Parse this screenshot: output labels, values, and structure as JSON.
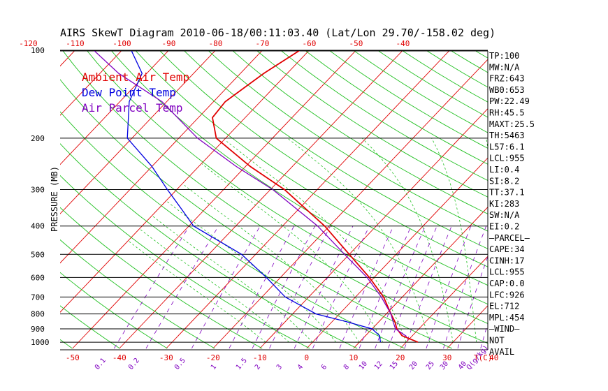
{
  "chart_data": {
    "type": "line",
    "title": "AIRS SkewT Diagram 2010-06-18/00:11:03.40 (Lat/Lon 29.70/-158.02 deg)",
    "ylabel": "PRESSURE (MB)",
    "y_scale": "log",
    "ylim": [
      1050,
      100
    ],
    "y_ticks": [
      "100",
      "200",
      "300",
      "400",
      "500",
      "600",
      "700",
      "800",
      "900",
      "1000"
    ],
    "top_temp_ticks": [
      "-120",
      "-110",
      "-100",
      "-90",
      "-80",
      "-70",
      "-60",
      "-50",
      "-40"
    ],
    "bottom_temp_ticks": [
      "-50",
      "-40",
      "-30",
      "-20",
      "-10",
      "0",
      "10",
      "20",
      "30",
      "40"
    ],
    "bottom_axis_unit": "T(C)",
    "mixing_ratio_labels": [
      "0.1",
      "0.2",
      "0.5",
      "1",
      "1.5",
      "2",
      "3",
      "4",
      "6",
      "8",
      "10",
      "12",
      "15",
      "20",
      "25",
      "30",
      "40",
      "Q(g/kg)"
    ],
    "legend": [
      {
        "label": "Ambient Air Temp",
        "color": "#e00000"
      },
      {
        "label": "Dew Point Temp",
        "color": "#0000e0"
      },
      {
        "label": "Air Parcel Temp",
        "color": "#8000c0"
      }
    ],
    "series": [
      {
        "name": "Ambient Air Temp",
        "color": "#e00000",
        "pressure": [
          1000,
          950,
          900,
          850,
          800,
          700,
          600,
          500,
          400,
          300,
          250,
          200,
          170,
          150,
          120,
          100
        ],
        "temperature": [
          22.5,
          17.8,
          15.3,
          13.4,
          11.0,
          6.0,
          -1.0,
          -10.0,
          -21.0,
          -37.0,
          -49.0,
          -62.0,
          -67.0,
          -67.5,
          -65.0,
          -62.0
        ]
      },
      {
        "name": "Dew Point Temp",
        "color": "#0000e0",
        "pressure": [
          1000,
          950,
          900,
          850,
          800,
          700,
          600,
          500,
          400,
          350,
          300,
          250,
          200,
          150,
          120,
          100
        ],
        "temperature": [
          14.5,
          13.0,
          10.0,
          3.0,
          -5.0,
          -15.0,
          -23.0,
          -33.0,
          -49.0,
          -55.0,
          -62.0,
          -70.0,
          -81.0,
          -88.0,
          -91.0,
          -98.0
        ]
      },
      {
        "name": "Air Parcel Temp",
        "color": "#8000c0",
        "pressure": [
          955,
          900,
          850,
          800,
          700,
          600,
          500,
          400,
          300,
          250,
          200,
          150,
          120,
          100
        ],
        "temperature": [
          18.9,
          15.0,
          13.0,
          11.0,
          5.5,
          -1.5,
          -11.0,
          -22.5,
          -39.5,
          -52.0,
          -66.0,
          -81.0,
          -96.0,
          -106.0
        ]
      }
    ]
  },
  "side_panel": [
    "TP:100",
    "MW:N/A",
    "FRZ:643",
    "WB0:653",
    "PW:22.49",
    "RH:45.5",
    "MAXT:25.5",
    "TH:5463",
    "L57:6.1",
    "LCL:955",
    "LI:0.4",
    "SI:8.2",
    "TT:37.1",
    "KI:283",
    "SW:N/A",
    "EI:0.2",
    "—PARCEL—",
    "CAPE:34",
    "CINH:17",
    "LCL:955",
    "CAP:0.0",
    "LFC:926",
    "EL:712",
    "MPL:454",
    "—WIND—",
    "NOT",
    "AVAIL"
  ]
}
